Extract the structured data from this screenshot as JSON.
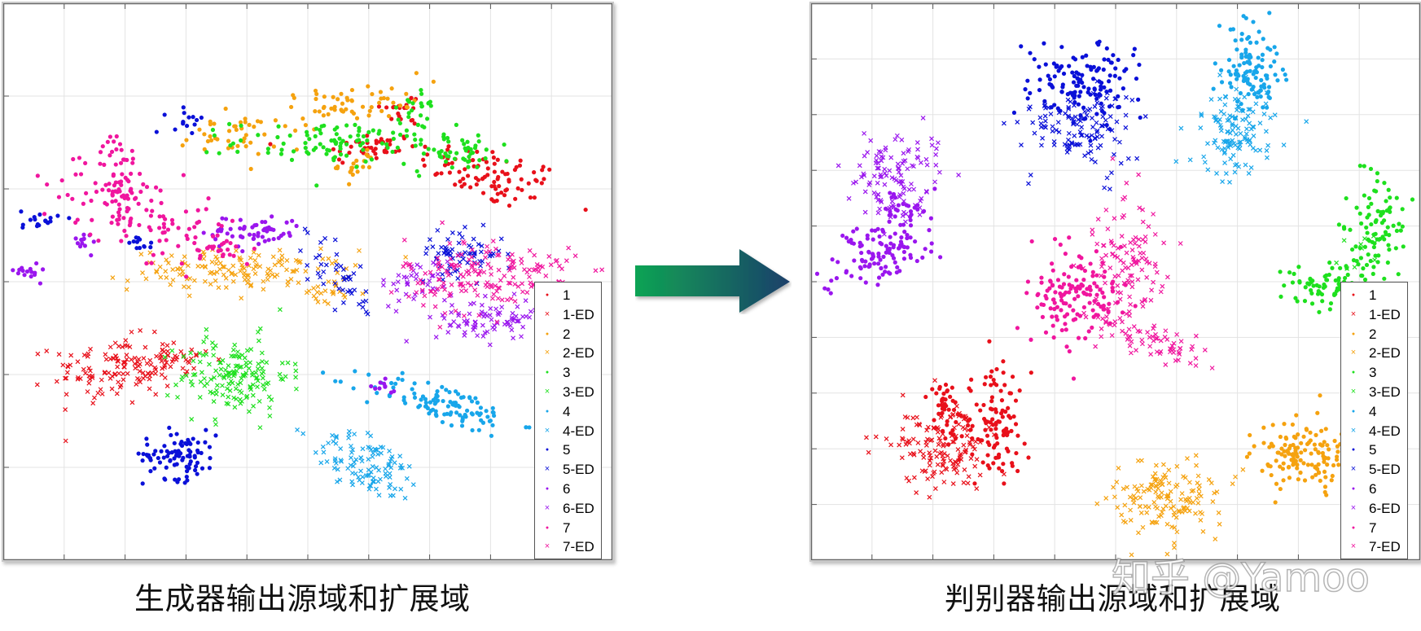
{
  "figure": {
    "captions": {
      "left": "生成器输出源域和扩展域",
      "right": "判别器输出源域和扩展域"
    },
    "watermark": "知乎 @Yamoo",
    "arrow": {
      "direction": "right",
      "gradient_from": "#0fa454",
      "gradient_to": "#1b3f6a"
    }
  },
  "legend": {
    "items": [
      {
        "label": "1",
        "marker": "dot",
        "color": "#e8101a"
      },
      {
        "label": "1-ED",
        "marker": "x",
        "color": "#e8101a"
      },
      {
        "label": "2",
        "marker": "dot",
        "color": "#f5a20f"
      },
      {
        "label": "2-ED",
        "marker": "x",
        "color": "#f5a20f"
      },
      {
        "label": "3",
        "marker": "dot",
        "color": "#1ee01e"
      },
      {
        "label": "3-ED",
        "marker": "x",
        "color": "#1ee01e"
      },
      {
        "label": "4",
        "marker": "dot",
        "color": "#18a6ea"
      },
      {
        "label": "4-ED",
        "marker": "x",
        "color": "#18a6ea"
      },
      {
        "label": "5",
        "marker": "dot",
        "color": "#0a10d8"
      },
      {
        "label": "5-ED",
        "marker": "x",
        "color": "#0a10d8"
      },
      {
        "label": "6",
        "marker": "dot",
        "color": "#9a16ee"
      },
      {
        "label": "6-ED",
        "marker": "x",
        "color": "#9a16ee"
      },
      {
        "label": "7",
        "marker": "dot",
        "color": "#f0169e"
      },
      {
        "label": "7-ED",
        "marker": "x",
        "color": "#f0169e"
      }
    ]
  },
  "chart_data": [
    {
      "type": "scatter",
      "title": "生成器输出源域和扩展域",
      "xlabel": "",
      "ylabel": "",
      "xlim": [
        0,
        100
      ],
      "ylim": [
        0,
        100
      ],
      "grid": true,
      "x_ticks": 10,
      "y_ticks": 6,
      "legend_position": "lower right",
      "series": [
        {
          "name": "1",
          "marker": "dot",
          "clusters": [
            {
              "x": 80,
              "y": 69,
              "sx": 6,
              "sy": 2.5,
              "n": 90,
              "angle": -15
            },
            {
              "x": 60,
              "y": 74,
              "sx": 4,
              "sy": 1.5,
              "n": 40
            },
            {
              "x": 66,
              "y": 81,
              "sx": 2,
              "sy": 1.5,
              "n": 20
            }
          ]
        },
        {
          "name": "1-ED",
          "marker": "x",
          "clusters": [
            {
              "x": 18,
              "y": 34,
              "sx": 5,
              "sy": 3,
              "n": 110
            },
            {
              "x": 27,
              "y": 36,
              "sx": 4,
              "sy": 1.5,
              "n": 50
            }
          ]
        },
        {
          "name": "2",
          "marker": "dot",
          "clusters": [
            {
              "x": 57,
              "y": 82,
              "sx": 6,
              "sy": 1.8,
              "n": 60,
              "angle": 10
            },
            {
              "x": 37,
              "y": 76,
              "sx": 4,
              "sy": 2,
              "n": 40
            },
            {
              "x": 58,
              "y": 71,
              "sx": 1.5,
              "sy": 1.5,
              "n": 20
            }
          ]
        },
        {
          "name": "2-ED",
          "marker": "x",
          "clusters": [
            {
              "x": 39,
              "y": 52,
              "sx": 9,
              "sy": 1.8,
              "n": 150
            },
            {
              "x": 53,
              "y": 48,
              "sx": 2,
              "sy": 1,
              "n": 20
            }
          ]
        },
        {
          "name": "3",
          "marker": "dot",
          "clusters": [
            {
              "x": 56,
              "y": 75,
              "sx": 9,
              "sy": 2,
              "n": 110
            },
            {
              "x": 75,
              "y": 73,
              "sx": 4,
              "sy": 1.5,
              "n": 40
            },
            {
              "x": 68,
              "y": 82,
              "sx": 1.5,
              "sy": 1.5,
              "n": 20
            }
          ]
        },
        {
          "name": "3-ED",
          "marker": "x",
          "clusters": [
            {
              "x": 38,
              "y": 33,
              "sx": 4.5,
              "sy": 3.5,
              "n": 160
            }
          ]
        },
        {
          "name": "4",
          "marker": "dot",
          "clusters": [
            {
              "x": 72,
              "y": 28,
              "sx": 6.5,
              "sy": 1.8,
              "n": 110,
              "angle": -15
            }
          ]
        },
        {
          "name": "4-ED",
          "marker": "x",
          "clusters": [
            {
              "x": 60,
              "y": 17,
              "sx": 5,
              "sy": 2.4,
              "n": 110,
              "angle": -30
            }
          ]
        },
        {
          "name": "5",
          "marker": "dot",
          "clusters": [
            {
              "x": 29,
              "y": 19,
              "sx": 3,
              "sy": 2.2,
              "n": 90
            },
            {
              "x": 6,
              "y": 61,
              "sx": 1.5,
              "sy": 1,
              "n": 18
            },
            {
              "x": 30,
              "y": 79,
              "sx": 1.5,
              "sy": 1,
              "n": 15
            },
            {
              "x": 23,
              "y": 57,
              "sx": 1.2,
              "sy": 0.8,
              "n": 12
            }
          ]
        },
        {
          "name": "5-ED",
          "marker": "x",
          "clusters": [
            {
              "x": 75,
              "y": 55,
              "sx": 3.5,
              "sy": 2,
              "n": 70
            },
            {
              "x": 55,
              "y": 51,
              "sx": 2,
              "sy": 4,
              "n": 45,
              "angle": 35
            }
          ]
        },
        {
          "name": "6",
          "marker": "dot",
          "clusters": [
            {
              "x": 41,
              "y": 59,
              "sx": 4,
              "sy": 1.5,
              "n": 60
            },
            {
              "x": 4,
              "y": 52,
              "sx": 1,
              "sy": 0.8,
              "n": 15
            },
            {
              "x": 13,
              "y": 57,
              "sx": 1.5,
              "sy": 1,
              "n": 12
            },
            {
              "x": 62,
              "y": 31,
              "sx": 1.2,
              "sy": 0.6,
              "n": 10
            }
          ]
        },
        {
          "name": "6-ED",
          "marker": "x",
          "clusters": [
            {
              "x": 81,
              "y": 43,
              "sx": 5,
              "sy": 2,
              "n": 90
            },
            {
              "x": 68,
              "y": 50,
              "sx": 3,
              "sy": 2,
              "n": 40
            }
          ]
        },
        {
          "name": "7",
          "marker": "dot",
          "clusters": [
            {
              "x": 22,
              "y": 63,
              "sx": 8,
              "sy": 3.5,
              "n": 120,
              "angle": -20
            },
            {
              "x": 19,
              "y": 70,
              "sx": 1.5,
              "sy": 3.5,
              "n": 40
            },
            {
              "x": 35,
              "y": 56,
              "sx": 2,
              "sy": 0.8,
              "n": 20
            }
          ]
        },
        {
          "name": "7-ED",
          "marker": "x",
          "clusters": [
            {
              "x": 80,
              "y": 51,
              "sx": 7,
              "sy": 3.5,
              "n": 180
            }
          ]
        }
      ]
    },
    {
      "type": "scatter",
      "title": "判别器输出源域和扩展域",
      "xlabel": "",
      "ylabel": "",
      "xlim": [
        0,
        100
      ],
      "ylim": [
        0,
        100
      ],
      "grid": true,
      "x_ticks": 10,
      "y_ticks": 10,
      "legend_position": "lower right",
      "series": [
        {
          "name": "1",
          "marker": "dot",
          "clusters": [
            {
              "x": 30,
              "y": 24,
              "sx": 2.8,
              "sy": 5,
              "n": 110
            },
            {
              "x": 22,
              "y": 28,
              "sx": 1.4,
              "sy": 3,
              "n": 40
            }
          ]
        },
        {
          "name": "1-ED",
          "marker": "x",
          "clusters": [
            {
              "x": 21,
              "y": 20,
              "sx": 4.5,
              "sy": 3.5,
              "n": 150,
              "angle": -25
            }
          ]
        },
        {
          "name": "2",
          "marker": "dot",
          "clusters": [
            {
              "x": 81,
              "y": 19,
              "sx": 4,
              "sy": 3,
              "n": 140
            }
          ]
        },
        {
          "name": "2-ED",
          "marker": "x",
          "clusters": [
            {
              "x": 59,
              "y": 11,
              "sx": 4.5,
              "sy": 3.5,
              "n": 150
            }
          ]
        },
        {
          "name": "3",
          "marker": "dot",
          "clusters": [
            {
              "x": 93,
              "y": 60,
              "sx": 2.5,
              "sy": 4.5,
              "n": 90
            },
            {
              "x": 85,
              "y": 49,
              "sx": 4,
              "sy": 2.2,
              "n": 80
            }
          ]
        },
        {
          "name": "3-ED",
          "marker": "x",
          "clusters": [
            {
              "x": 90,
              "y": 55,
              "sx": 2,
              "sy": 2,
              "n": 10
            }
          ]
        },
        {
          "name": "4",
          "marker": "dot",
          "clusters": [
            {
              "x": 72,
              "y": 88,
              "sx": 2.5,
              "sy": 4,
              "n": 110
            }
          ]
        },
        {
          "name": "4-ED",
          "marker": "x",
          "clusters": [
            {
              "x": 70,
              "y": 77,
              "sx": 3,
              "sy": 3.8,
              "n": 130
            }
          ]
        },
        {
          "name": "5",
          "marker": "dot",
          "clusters": [
            {
              "x": 44,
              "y": 86,
              "sx": 4.5,
              "sy": 3.5,
              "n": 130
            }
          ]
        },
        {
          "name": "5-ED",
          "marker": "x",
          "clusters": [
            {
              "x": 44,
              "y": 78,
              "sx": 4.2,
              "sy": 3.5,
              "n": 130
            }
          ]
        },
        {
          "name": "6",
          "marker": "dot",
          "clusters": [
            {
              "x": 10,
              "y": 55,
              "sx": 4.5,
              "sy": 3,
              "n": 110,
              "angle": 20
            },
            {
              "x": 15,
              "y": 62,
              "sx": 2.5,
              "sy": 1.8,
              "n": 30
            }
          ]
        },
        {
          "name": "6-ED",
          "marker": "x",
          "clusters": [
            {
              "x": 14,
              "y": 69,
              "sx": 3.5,
              "sy": 4.5,
              "n": 120,
              "angle": -30
            }
          ]
        },
        {
          "name": "7",
          "marker": "dot",
          "clusters": [
            {
              "x": 43,
              "y": 48,
              "sx": 3.5,
              "sy": 4.5,
              "n": 140
            }
          ]
        },
        {
          "name": "7-ED",
          "marker": "x",
          "clusters": [
            {
              "x": 52,
              "y": 54,
              "sx": 3.5,
              "sy": 6,
              "n": 120
            },
            {
              "x": 57,
              "y": 39,
              "sx": 5.5,
              "sy": 1.5,
              "n": 70,
              "angle": -25
            }
          ]
        }
      ]
    }
  ]
}
